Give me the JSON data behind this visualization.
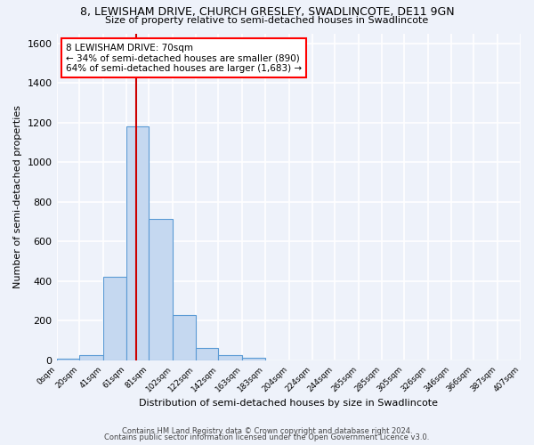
{
  "title_line1": "8, LEWISHAM DRIVE, CHURCH GRESLEY, SWADLINCOTE, DE11 9GN",
  "title_line2": "Size of property relative to semi-detached houses in Swadlincote",
  "xlabel": "Distribution of semi-detached houses by size in Swadlincote",
  "ylabel": "Number of semi-detached properties",
  "footnote1": "Contains HM Land Registry data © Crown copyright and database right 2024.",
  "footnote2": "Contains public sector information licensed under the Open Government Licence v3.0.",
  "bar_edges": [
    0,
    20,
    41,
    61,
    81,
    102,
    122,
    142,
    163,
    183,
    204,
    224,
    244,
    265,
    285,
    305,
    326,
    346,
    366,
    387,
    407
  ],
  "bar_heights": [
    10,
    25,
    420,
    1180,
    715,
    230,
    65,
    28,
    12,
    0,
    0,
    0,
    0,
    0,
    0,
    0,
    0,
    0,
    0,
    0
  ],
  "tick_labels": [
    "0sqm",
    "20sqm",
    "41sqm",
    "61sqm",
    "81sqm",
    "102sqm",
    "122sqm",
    "142sqm",
    "163sqm",
    "183sqm",
    "204sqm",
    "224sqm",
    "244sqm",
    "265sqm",
    "285sqm",
    "305sqm",
    "326sqm",
    "346sqm",
    "366sqm",
    "387sqm",
    "407sqm"
  ],
  "bar_color": "#c5d8f0",
  "bar_edge_color": "#5b9bd5",
  "property_line_x": 70,
  "property_line_color": "#cc0000",
  "annotation_text": "8 LEWISHAM DRIVE: 70sqm\n← 34% of semi-detached houses are smaller (890)\n64% of semi-detached houses are larger (1,683) →",
  "ylim": [
    0,
    1650
  ],
  "yticks": [
    0,
    200,
    400,
    600,
    800,
    1000,
    1200,
    1400,
    1600
  ],
  "background_color": "#eef2fa",
  "grid_color": "#ffffff"
}
